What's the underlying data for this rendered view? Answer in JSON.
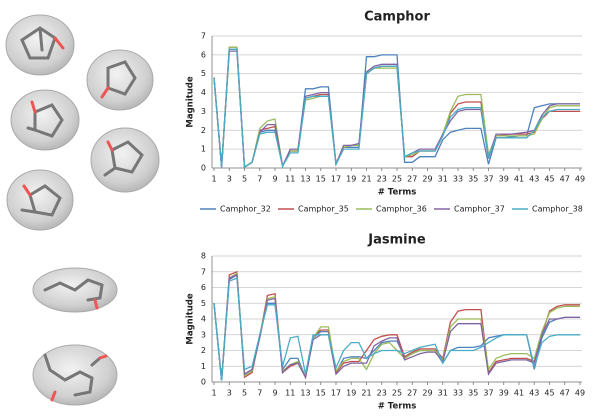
{
  "chart_data": [
    {
      "type": "line",
      "title": "Camphor",
      "x_label": "# Terms",
      "y_label": "Magnitude",
      "x": [
        1,
        2,
        3,
        4,
        5,
        6,
        7,
        8,
        9,
        10,
        11,
        12,
        13,
        14,
        15,
        16,
        17,
        18,
        19,
        20,
        21,
        22,
        23,
        24,
        25,
        26,
        27,
        28,
        29,
        30,
        31,
        32,
        33,
        34,
        35,
        36,
        37,
        38,
        39,
        40,
        41,
        42,
        43,
        44,
        45,
        46,
        47,
        48,
        49
      ],
      "xlim": [
        1,
        49
      ],
      "xticks": [
        1,
        3,
        5,
        7,
        9,
        11,
        13,
        15,
        17,
        19,
        21,
        23,
        25,
        27,
        29,
        31,
        33,
        35,
        37,
        39,
        41,
        43,
        45,
        47,
        49
      ],
      "ylim": [
        0,
        7
      ],
      "yticks": [
        0,
        1,
        2,
        3,
        4,
        5,
        6,
        7
      ],
      "grid": true,
      "legend": "bottom",
      "series": [
        {
          "name": "Camphor_32",
          "color": "#4f81bd",
          "values": [
            4.8,
            0.05,
            6.3,
            6.3,
            0.05,
            0.3,
            1.9,
            2.0,
            2.0,
            0.1,
            0.9,
            0.9,
            4.2,
            4.2,
            4.3,
            4.3,
            0.2,
            1.1,
            1.1,
            1.1,
            5.9,
            5.9,
            6.0,
            6.0,
            6.0,
            0.3,
            0.3,
            0.6,
            0.6,
            0.6,
            1.5,
            1.9,
            2.0,
            2.1,
            2.1,
            2.1,
            0.2,
            1.6,
            1.6,
            1.65,
            1.7,
            1.7,
            3.2,
            3.3,
            3.4,
            3.4,
            3.4,
            3.4,
            3.4
          ]
        },
        {
          "name": "Camphor_35",
          "color": "#c0504d",
          "values": [
            4.8,
            0.05,
            6.4,
            6.4,
            0.05,
            0.3,
            2.0,
            2.1,
            2.2,
            0.1,
            0.9,
            0.9,
            3.7,
            3.8,
            3.9,
            3.9,
            0.2,
            1.1,
            1.2,
            1.2,
            5.0,
            5.3,
            5.4,
            5.4,
            5.4,
            0.6,
            0.6,
            0.9,
            0.9,
            0.9,
            1.7,
            2.9,
            3.4,
            3.5,
            3.5,
            3.5,
            0.6,
            1.7,
            1.75,
            1.8,
            1.8,
            1.8,
            1.9,
            2.6,
            3.0,
            3.0,
            3.0,
            3.0,
            3.0
          ]
        },
        {
          "name": "Camphor_36",
          "color": "#9bbb59",
          "values": [
            4.8,
            0.05,
            6.4,
            6.4,
            0.05,
            0.3,
            2.1,
            2.5,
            2.6,
            0.1,
            0.9,
            0.9,
            3.6,
            3.7,
            3.8,
            3.8,
            0.2,
            1.1,
            1.2,
            1.2,
            5.0,
            5.3,
            5.3,
            5.3,
            5.3,
            0.6,
            0.7,
            0.9,
            0.9,
            0.9,
            1.8,
            3.0,
            3.8,
            3.9,
            3.9,
            3.9,
            0.7,
            1.7,
            1.7,
            1.7,
            1.7,
            1.7,
            1.8,
            2.6,
            3.2,
            3.3,
            3.3,
            3.3,
            3.3
          ]
        },
        {
          "name": "Camphor_37",
          "color": "#8064a2",
          "values": [
            4.8,
            0.05,
            6.2,
            6.2,
            0.05,
            0.3,
            1.9,
            2.3,
            2.3,
            0.1,
            1.0,
            1.0,
            3.8,
            3.9,
            4.0,
            4.0,
            0.2,
            1.2,
            1.2,
            1.3,
            5.1,
            5.4,
            5.5,
            5.5,
            5.5,
            0.6,
            0.8,
            1.0,
            1.0,
            1.0,
            1.8,
            2.5,
            3.0,
            3.1,
            3.1,
            3.1,
            0.5,
            1.8,
            1.8,
            1.8,
            1.85,
            1.9,
            2.0,
            2.8,
            3.3,
            3.4,
            3.4,
            3.4,
            3.4
          ]
        },
        {
          "name": "Camphor_38",
          "color": "#4bacc6",
          "values": [
            4.8,
            0.05,
            6.3,
            6.3,
            0.05,
            0.3,
            1.8,
            1.9,
            1.9,
            0.1,
            0.8,
            0.8,
            3.7,
            3.8,
            3.8,
            3.8,
            0.2,
            1.0,
            1.0,
            1.0,
            5.0,
            5.3,
            5.4,
            5.4,
            5.4,
            0.6,
            0.8,
            0.9,
            0.9,
            0.9,
            1.7,
            2.7,
            3.1,
            3.2,
            3.2,
            3.2,
            0.6,
            1.6,
            1.6,
            1.6,
            1.6,
            1.6,
            2.0,
            2.7,
            3.0,
            3.1,
            3.1,
            3.1,
            3.1
          ]
        }
      ]
    },
    {
      "type": "line",
      "title": "Jasmine",
      "x_label": "# Terms",
      "y_label": "Magnitude",
      "x": [
        1,
        2,
        3,
        4,
        5,
        6,
        7,
        8,
        9,
        10,
        11,
        12,
        13,
        14,
        15,
        16,
        17,
        18,
        19,
        20,
        21,
        22,
        23,
        24,
        25,
        26,
        27,
        28,
        29,
        30,
        31,
        32,
        33,
        34,
        35,
        36,
        37,
        38,
        39,
        40,
        41,
        42,
        43,
        44,
        45,
        46,
        47,
        48,
        49
      ],
      "xlim": [
        1,
        49
      ],
      "xticks": [
        1,
        3,
        5,
        7,
        9,
        11,
        13,
        15,
        17,
        19,
        21,
        23,
        25,
        27,
        29,
        31,
        33,
        35,
        37,
        39,
        41,
        43,
        45,
        47,
        49
      ],
      "ylim": [
        0,
        8
      ],
      "yticks": [
        0,
        1,
        2,
        3,
        4,
        5,
        6,
        7,
        8
      ],
      "grid": true,
      "series": [
        {
          "color": "#4f81bd",
          "values": [
            5.0,
            0.1,
            6.5,
            6.8,
            0.5,
            0.8,
            3.0,
            5.0,
            5.0,
            0.8,
            1.5,
            1.5,
            0.3,
            2.8,
            3.2,
            3.2,
            0.6,
            1.5,
            1.6,
            1.6,
            1.5,
            2.0,
            2.5,
            2.6,
            2.6,
            1.6,
            1.8,
            2.0,
            2.0,
            2.0,
            1.2,
            2.0,
            2.2,
            2.2,
            2.2,
            2.3,
            2.8,
            2.9,
            3.0,
            3.0,
            3.0,
            3.0,
            0.8,
            2.8,
            3.8,
            4.0,
            4.1,
            4.1,
            4.1
          ]
        },
        {
          "color": "#c0504d",
          "values": [
            5.0,
            0.1,
            6.8,
            7.0,
            0.3,
            0.6,
            2.9,
            5.5,
            5.6,
            0.6,
            1.0,
            1.2,
            0.3,
            2.9,
            3.3,
            3.3,
            0.6,
            1.2,
            1.3,
            1.3,
            2.0,
            2.7,
            2.9,
            3.0,
            3.0,
            1.6,
            1.9,
            2.1,
            2.1,
            2.1,
            1.5,
            3.8,
            4.5,
            4.6,
            4.6,
            4.6,
            0.6,
            1.3,
            1.4,
            1.5,
            1.5,
            1.5,
            1.3,
            3.0,
            4.5,
            4.8,
            4.9,
            4.9,
            4.9
          ]
        },
        {
          "color": "#9bbb59",
          "values": [
            5.0,
            0.1,
            6.6,
            6.9,
            0.4,
            0.7,
            2.9,
            5.3,
            5.4,
            0.7,
            1.1,
            1.3,
            0.3,
            2.8,
            3.5,
            3.5,
            0.7,
            1.3,
            1.5,
            1.5,
            0.8,
            1.8,
            2.4,
            2.5,
            2.0,
            1.5,
            1.8,
            2.0,
            2.0,
            2.0,
            1.4,
            3.5,
            4.0,
            4.0,
            4.0,
            4.0,
            0.8,
            1.5,
            1.7,
            1.8,
            1.8,
            1.8,
            1.5,
            3.2,
            4.4,
            4.7,
            4.8,
            4.8,
            4.8
          ]
        },
        {
          "color": "#8064a2",
          "values": [
            5.0,
            0.1,
            6.6,
            6.8,
            0.5,
            0.8,
            2.8,
            5.2,
            5.3,
            0.6,
            1.1,
            1.2,
            0.3,
            2.7,
            3.0,
            3.0,
            0.5,
            1.0,
            1.2,
            1.2,
            1.2,
            2.3,
            2.6,
            2.8,
            2.8,
            1.4,
            1.6,
            1.8,
            1.9,
            1.9,
            1.3,
            3.2,
            3.7,
            3.7,
            3.7,
            3.7,
            0.5,
            1.2,
            1.3,
            1.4,
            1.4,
            1.4,
            1.2,
            3.0,
            4.0,
            4.0,
            4.1,
            4.1,
            4.1
          ]
        },
        {
          "color": "#4bacc6",
          "values": [
            5.0,
            0.1,
            6.4,
            6.6,
            0.8,
            1.0,
            3.0,
            4.9,
            4.9,
            1.0,
            2.8,
            2.9,
            0.5,
            3.0,
            3.0,
            3.0,
            0.9,
            2.0,
            2.5,
            2.5,
            1.5,
            1.8,
            2.0,
            2.0,
            2.0,
            1.8,
            2.0,
            2.2,
            2.3,
            2.4,
            1.2,
            2.0,
            2.0,
            2.0,
            2.0,
            2.2,
            2.5,
            2.8,
            3.0,
            3.0,
            3.0,
            3.0,
            1.0,
            2.5,
            2.9,
            3.0,
            3.0,
            3.0,
            3.0
          ]
        }
      ]
    }
  ]
}
